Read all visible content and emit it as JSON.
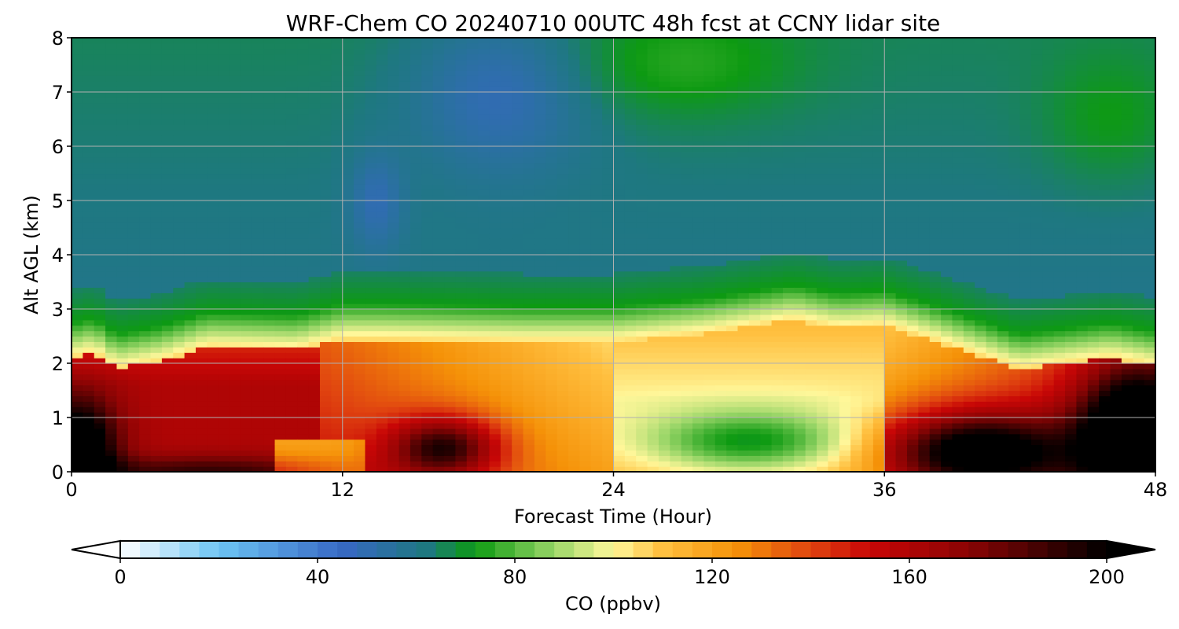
{
  "chart_data": {
    "type": "heatmap",
    "title": "WRF-Chem CO  20240710 00UTC 48h fcst at CCNY lidar site",
    "xlabel": "Forecast Time (Hour)",
    "ylabel": "Alt AGL (km)",
    "xlim": [
      0,
      48
    ],
    "ylim": [
      0,
      8
    ],
    "xticks": [
      0,
      12,
      24,
      36,
      48
    ],
    "yticks": [
      0,
      1,
      2,
      3,
      4,
      5,
      6,
      7,
      8
    ],
    "grid": true,
    "colorbar": {
      "label": "CO  (ppbv)",
      "orientation": "horizontal",
      "extend": "both",
      "range": [
        0,
        200
      ],
      "ticks": [
        0,
        40,
        80,
        120,
        160,
        200
      ],
      "colormap_stops": [
        {
          "value": 0,
          "color": "#ffffff"
        },
        {
          "value": 20,
          "color": "#6cc4f4"
        },
        {
          "value": 45,
          "color": "#3768c4"
        },
        {
          "value": 62,
          "color": "#1e7880"
        },
        {
          "value": 72,
          "color": "#0d9a12"
        },
        {
          "value": 88,
          "color": "#9ad668"
        },
        {
          "value": 100,
          "color": "#fff79a"
        },
        {
          "value": 110,
          "color": "#ffc040"
        },
        {
          "value": 125,
          "color": "#f59208"
        },
        {
          "value": 140,
          "color": "#e04410"
        },
        {
          "value": 152,
          "color": "#c80606"
        },
        {
          "value": 172,
          "color": "#8a0404"
        },
        {
          "value": 200,
          "color": "#000000"
        }
      ]
    },
    "x": [
      0,
      2,
      4,
      6,
      8,
      10,
      12,
      14,
      16,
      18,
      20,
      22,
      24,
      26,
      28,
      30,
      32,
      34,
      36,
      38,
      40,
      42,
      44,
      46,
      48
    ],
    "y": [
      0,
      0.25,
      0.5,
      0.75,
      1,
      1.25,
      1.5,
      1.75,
      2,
      2.25,
      2.5,
      2.75,
      3,
      3.5,
      4,
      4.5,
      5,
      5.5,
      6,
      7,
      8
    ]
  }
}
